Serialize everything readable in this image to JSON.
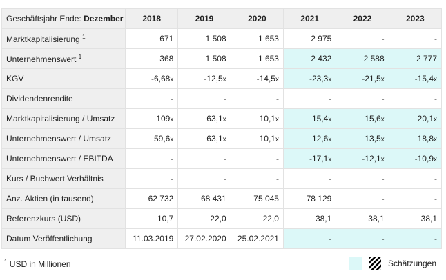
{
  "header": {
    "label": "Geschäftsjahr Ende:",
    "period": "Dezember",
    "years": [
      "2018",
      "2019",
      "2020",
      "2021",
      "2022",
      "2023"
    ]
  },
  "table": {
    "rows": [
      {
        "label": "Marktkapitalisierung",
        "note": "1",
        "estimate": false,
        "cells": [
          "671",
          "1 508",
          "1 653",
          "2 975",
          "-",
          "-"
        ]
      },
      {
        "label": "Unternehmenswert",
        "note": "1",
        "estimate": true,
        "cells": [
          "368",
          "1 508",
          "1 653",
          "2 432",
          "2 588",
          "2 777"
        ]
      },
      {
        "label": "KGV",
        "estimate": true,
        "cells": [
          {
            "v": "-6,68",
            "u": "x"
          },
          {
            "v": "-12,5",
            "u": "x"
          },
          {
            "v": "-14,5",
            "u": "x"
          },
          {
            "v": "-23,3",
            "u": "x"
          },
          {
            "v": "-21,5",
            "u": "x"
          },
          {
            "v": "-15,4",
            "u": "x"
          }
        ]
      },
      {
        "label": "Dividendenrendite",
        "estimate": false,
        "cells": [
          "-",
          "-",
          "-",
          "-",
          "-",
          "-"
        ]
      },
      {
        "label": "Marktkapitalisierung / Umsatz",
        "estimate": true,
        "cells": [
          {
            "v": "109",
            "u": "x"
          },
          {
            "v": "63,1",
            "u": "x"
          },
          {
            "v": "10,1",
            "u": "x"
          },
          {
            "v": "15,4",
            "u": "x"
          },
          {
            "v": "15,6",
            "u": "x"
          },
          {
            "v": "20,1",
            "u": "x"
          }
        ]
      },
      {
        "label": "Unternehmenswert / Umsatz",
        "estimate": true,
        "cells": [
          {
            "v": "59,6",
            "u": "x"
          },
          {
            "v": "63,1",
            "u": "x"
          },
          {
            "v": "10,1",
            "u": "x"
          },
          {
            "v": "12,6",
            "u": "x"
          },
          {
            "v": "13,5",
            "u": "x"
          },
          {
            "v": "18,8",
            "u": "x"
          }
        ]
      },
      {
        "label": "Unternehmenswert / EBITDA",
        "estimate": true,
        "cells": [
          "-",
          "-",
          "-",
          {
            "v": "-17,1",
            "u": "x"
          },
          {
            "v": "-12,1",
            "u": "x"
          },
          {
            "v": "-10,9",
            "u": "x"
          }
        ]
      },
      {
        "label": "Kurs / Buchwert Verhältnis",
        "estimate": false,
        "cells": [
          "-",
          "-",
          "-",
          "-",
          "-",
          "-"
        ]
      },
      {
        "label": "Anz. Aktien (in tausend)",
        "estimate": false,
        "cells": [
          "62 732",
          "68 431",
          "75 045",
          "78 129",
          "-",
          "-"
        ]
      },
      {
        "label": "Referenzkurs (USD)",
        "estimate": false,
        "cells": [
          "10,7",
          "22,0",
          "22,0",
          "38,1",
          "38,1",
          "38,1"
        ]
      },
      {
        "label": "Datum Veröffentlichung",
        "estimate": true,
        "cells": [
          "11.03.2019",
          "27.02.2020",
          "25.02.2021",
          "-",
          "-",
          "-"
        ]
      }
    ]
  },
  "footer": {
    "note": "1",
    "text": "USD in Millionen",
    "legend": "Schätzungen"
  }
}
